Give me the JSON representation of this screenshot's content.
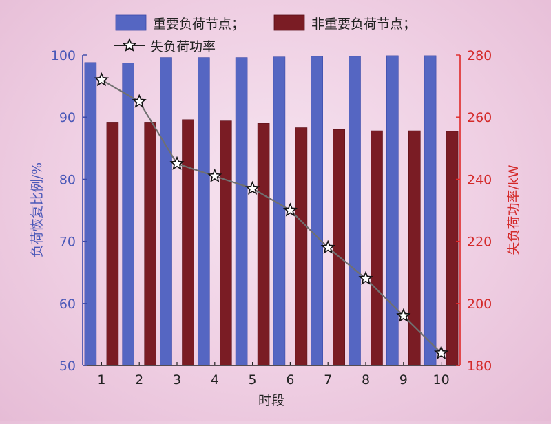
{
  "chart_data": {
    "type": "bar",
    "categories": [
      "1",
      "2",
      "3",
      "4",
      "5",
      "6",
      "7",
      "8",
      "9",
      "10"
    ],
    "xlabel": "时段",
    "ylabel_left": "负荷恢复比例/%",
    "ylabel_right": "失负荷功率/kW",
    "ylim_left": [
      50,
      100
    ],
    "ylim_right": [
      180,
      280
    ],
    "yticks_left": [
      "50",
      "60",
      "70",
      "80",
      "90",
      "100"
    ],
    "yticks_right": [
      "180",
      "200",
      "220",
      "240",
      "260",
      "280"
    ],
    "grid": false,
    "legend_position": "top",
    "series": [
      {
        "name": "重要负荷节点；",
        "kind": "bar",
        "axis": "left",
        "color": "#5566c2",
        "values": [
          98.8,
          98.7,
          99.6,
          99.6,
          99.6,
          99.7,
          99.8,
          99.8,
          99.9,
          99.9
        ]
      },
      {
        "name": "非重要负荷节点；",
        "kind": "bar",
        "axis": "left",
        "color": "#7a1c24",
        "values": [
          89.2,
          89.2,
          89.6,
          89.4,
          89.0,
          88.3,
          88.0,
          87.8,
          87.8,
          87.7
        ]
      },
      {
        "name": "失负荷功率",
        "kind": "line",
        "axis": "right",
        "color": "#707070",
        "marker": "star",
        "values": [
          272,
          265,
          245,
          241,
          237,
          230,
          218,
          208,
          196,
          184
        ]
      }
    ]
  }
}
